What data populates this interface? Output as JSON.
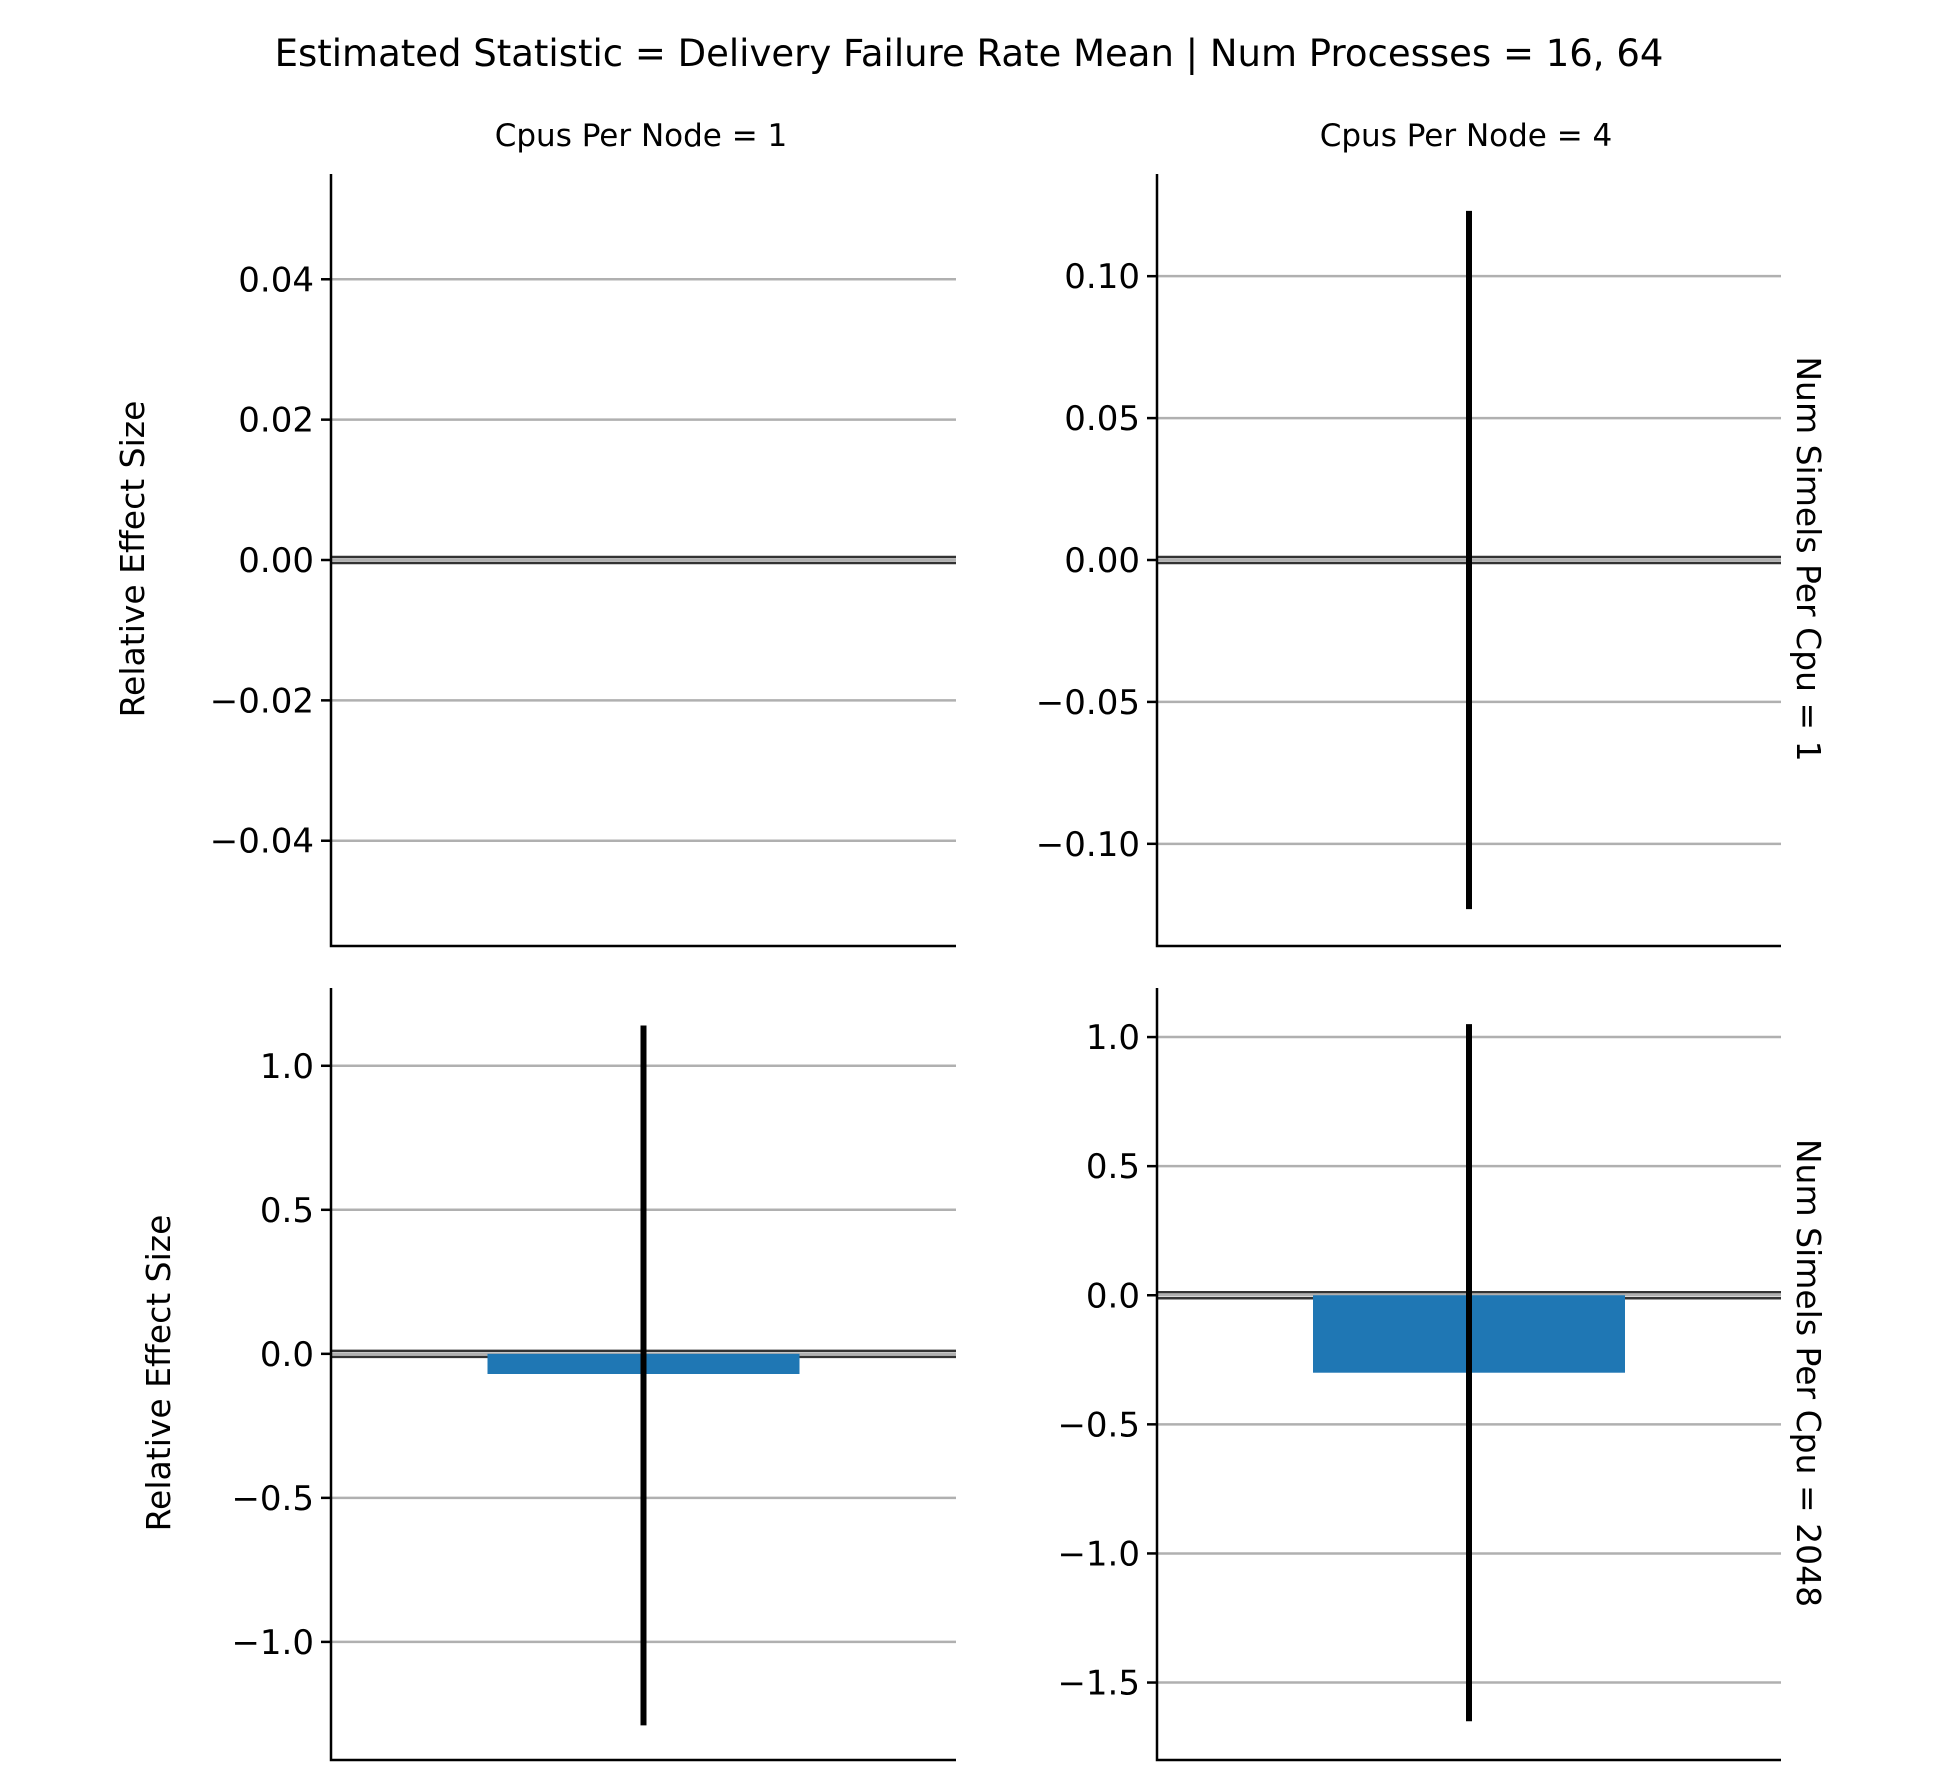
{
  "chart_data": {
    "type": "bar",
    "title": "Estimated Statistic = Delivery Failure Rate Mean | Num Processes = 16, 64",
    "ylabel": "Relative Effect Size",
    "columns": [
      "Cpus Per Node = 1",
      "Cpus Per Node = 4"
    ],
    "rows": [
      "Num Simels Per Cpu = 1",
      "Num Simels Per Cpu = 2048"
    ],
    "bar_color": "#1f77b4",
    "grid": true,
    "panels": [
      {
        "column": "Cpus Per Node = 1",
        "row": "Num Simels Per Cpu = 1",
        "ylim": [
          -0.055,
          0.055
        ],
        "yticks": [
          -0.04,
          -0.02,
          0.0,
          0.02,
          0.04
        ],
        "ytick_labels": [
          "−0.04",
          "−0.02",
          "0.00",
          "0.02",
          "0.04"
        ],
        "value": null,
        "ci": null
      },
      {
        "column": "Cpus Per Node = 4",
        "row": "Num Simels Per Cpu = 1",
        "ylim": [
          -0.136,
          0.136
        ],
        "yticks": [
          -0.1,
          -0.05,
          0.0,
          0.05,
          0.1
        ],
        "ytick_labels": [
          "−0.10",
          "−0.05",
          "0.00",
          "0.05",
          "0.10"
        ],
        "value": 0.0,
        "ci": [
          -0.123,
          0.123
        ]
      },
      {
        "column": "Cpus Per Node = 1",
        "row": "Num Simels Per Cpu = 2048",
        "ylim": [
          -1.41,
          1.27
        ],
        "yticks": [
          -1.0,
          -0.5,
          0.0,
          0.5,
          1.0
        ],
        "ytick_labels": [
          "−1.0",
          "−0.5",
          "0.0",
          "0.5",
          "1.0"
        ],
        "value": -0.07,
        "ci": [
          -1.29,
          1.14
        ]
      },
      {
        "column": "Cpus Per Node = 4",
        "row": "Num Simels Per Cpu = 2048",
        "ylim": [
          -1.8,
          1.19
        ],
        "yticks": [
          -1.5,
          -1.0,
          -0.5,
          0.0,
          0.5,
          1.0
        ],
        "ytick_labels": [
          "−1.5",
          "−1.0",
          "−0.5",
          "0.0",
          "0.5",
          "1.0"
        ],
        "value": -0.3,
        "ci": [
          -1.65,
          1.05
        ]
      }
    ]
  }
}
